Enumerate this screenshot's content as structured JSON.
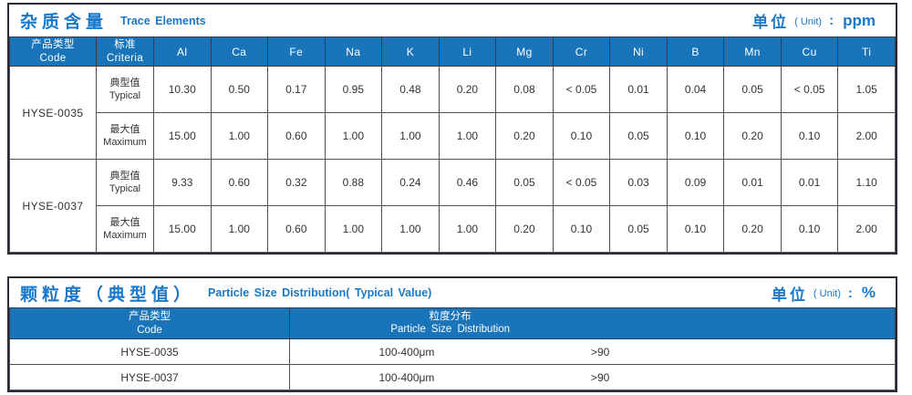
{
  "colors": {
    "accent_blue": "#1a78c8",
    "header_bg": "#1a74ba",
    "grid_line": "#50505a",
    "outer_border": "#2b2b35",
    "text_dark": "#333333"
  },
  "trace_table": {
    "title_zh": "杂质含量",
    "title_en": "Trace Elements",
    "unit_label": "单位",
    "unit_paren": "( Unit)",
    "unit_colon": ":",
    "unit_value": "ppm",
    "col_code_zh": "产品类型",
    "col_code_en": "Code",
    "col_criteria_zh": "标准",
    "col_criteria_en": "Criteria",
    "elements": [
      "Al",
      "Ca",
      "Fe",
      "Na",
      "K",
      "Li",
      "Mg",
      "Cr",
      "Ni",
      "B",
      "Mn",
      "Cu",
      "Ti"
    ],
    "products": [
      {
        "code": "HYSE-0035",
        "rows": [
          {
            "criteria_zh": "典型值",
            "criteria_en": "Typical",
            "values": [
              "10.30",
              "0.50",
              "0.17",
              "0.95",
              "0.48",
              "0.20",
              "0.08",
              "< 0.05",
              "0.01",
              "0.04",
              "0.05",
              "< 0.05",
              "1.05"
            ]
          },
          {
            "criteria_zh": "最大值",
            "criteria_en": "Maximum",
            "values": [
              "15.00",
              "1.00",
              "0.60",
              "1.00",
              "1.00",
              "1.00",
              "0.20",
              "0.10",
              "0.05",
              "0.10",
              "0.20",
              "0.10",
              "2.00"
            ]
          }
        ]
      },
      {
        "code": "HYSE-0037",
        "rows": [
          {
            "criteria_zh": "典型值",
            "criteria_en": "Typical",
            "values": [
              "9.33",
              "0.60",
              "0.32",
              "0.88",
              "0.24",
              "0.46",
              "0.05",
              "< 0.05",
              "0.03",
              "0.09",
              "0.01",
              "0.01",
              "1.10"
            ]
          },
          {
            "criteria_zh": "最大值",
            "criteria_en": "Maximum",
            "values": [
              "15.00",
              "1.00",
              "0.60",
              "1.00",
              "1.00",
              "1.00",
              "0.20",
              "0.10",
              "0.05",
              "0.10",
              "0.20",
              "0.10",
              "2.00"
            ]
          }
        ]
      }
    ]
  },
  "particle_table": {
    "title_zh": "颗粒度（典型值）",
    "title_en": "Particle Size Distribution( Typical Value)",
    "unit_label": "单位",
    "unit_paren": "( Unit)",
    "unit_colon": ":",
    "unit_value": "%",
    "col_code_zh": "产品类型",
    "col_code_en": "Code",
    "col_dist_zh": "粒度分布",
    "col_dist_en": "Particle Size Distribution",
    "rows": [
      {
        "code": "HYSE-0035",
        "size_range": "100-400μm",
        "value": ">90"
      },
      {
        "code": "HYSE-0037",
        "size_range": "100-400μm",
        "value": ">90"
      }
    ]
  }
}
